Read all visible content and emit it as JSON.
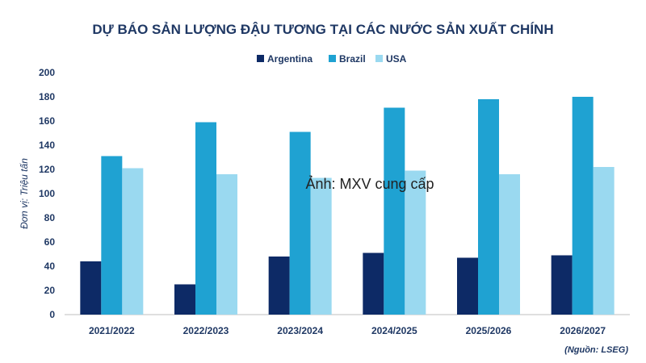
{
  "chart_data": {
    "type": "bar",
    "title": "DỰ BÁO SẢN LƯỢNG ĐẬU TƯƠNG TẠI CÁC NƯỚC SẢN XUẤT CHÍNH",
    "ylabel": "Đơn vị: Triệu tấn",
    "xlabel": "",
    "ylim": [
      0,
      200
    ],
    "yticks": [
      0,
      20,
      40,
      60,
      80,
      100,
      120,
      140,
      160,
      180,
      200
    ],
    "grid": false,
    "legend_position": "top-center",
    "categories": [
      "2021/2022",
      "2022/2023",
      "2023/2024",
      "2024/2025",
      "2025/2026",
      "2026/2027"
    ],
    "series": [
      {
        "name": "Argentina",
        "color": "#0d2a66",
        "values": [
          44,
          25,
          48,
          51,
          47,
          49
        ]
      },
      {
        "name": "Brazil",
        "color": "#1fa2d2",
        "values": [
          131,
          159,
          151,
          171,
          178,
          180
        ]
      },
      {
        "name": "USA",
        "color": "#9ad9f0",
        "values": [
          121,
          116,
          113,
          119,
          116,
          122
        ]
      }
    ],
    "source": "(Nguồn: LSEG)",
    "watermark": "Ảnh: MXV cung cấp"
  }
}
